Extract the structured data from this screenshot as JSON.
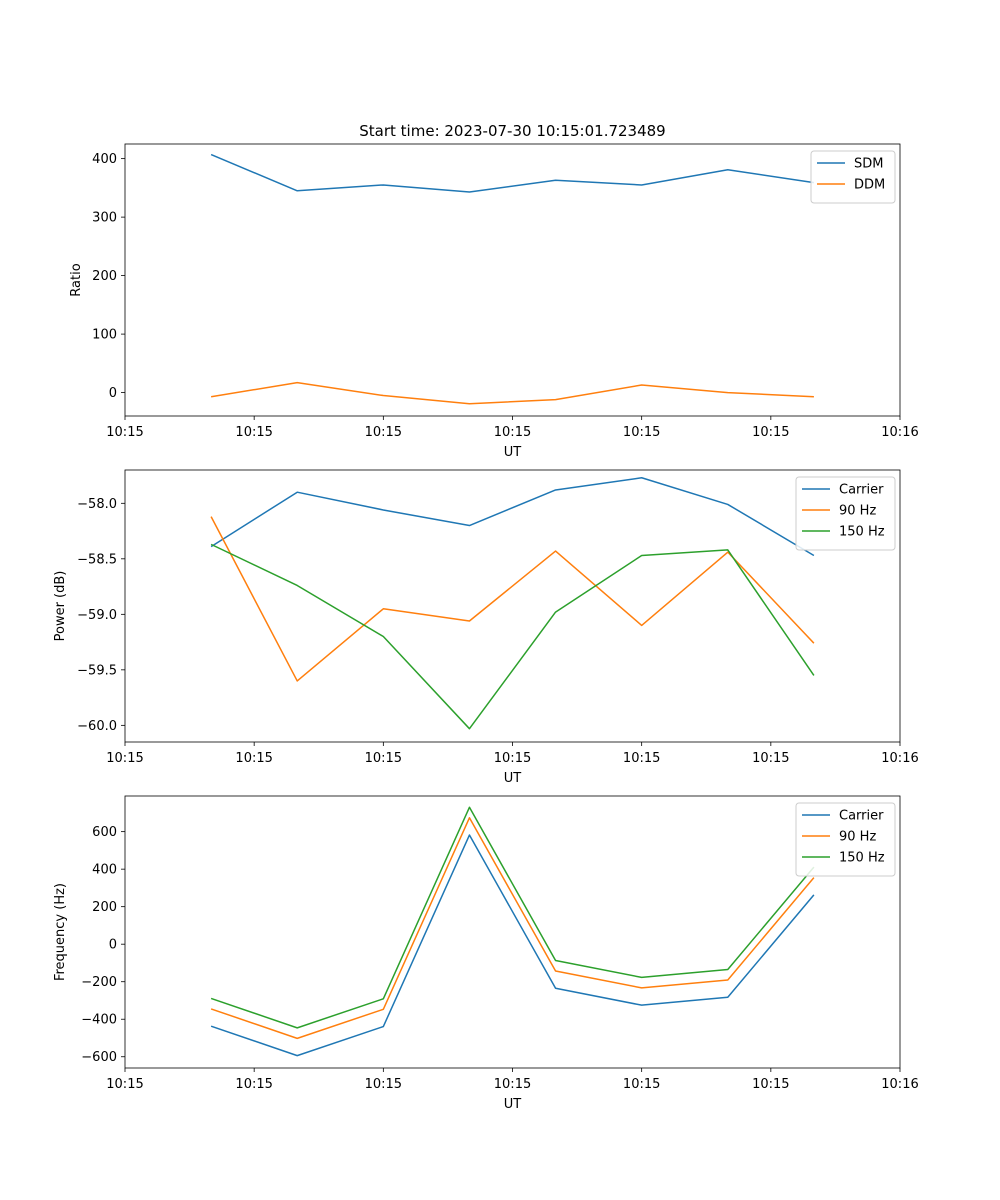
{
  "figure_title": "Start time: 2023-07-30 10:15:01.723489",
  "colors": {
    "series_1": "#1f77b4",
    "series_2": "#ff7f0e",
    "series_3": "#2ca02c",
    "axes": "#000000",
    "background": "#ffffff"
  },
  "chart_data": [
    {
      "type": "line",
      "title": "Start time: 2023-07-30 10:15:01.723489",
      "xlabel": "UT",
      "ylabel": "Ratio",
      "xlim": [
        0,
        9
      ],
      "ylim": [
        -40,
        425
      ],
      "x": [
        1,
        2,
        3,
        4,
        5,
        6,
        7,
        8
      ],
      "x_ticks": [
        0,
        1.5,
        3,
        4.5,
        6,
        7.5,
        9
      ],
      "x_tick_labels": [
        "10:15",
        "10:15",
        "10:15",
        "10:15",
        "10:15",
        "10:15",
        "10:16"
      ],
      "y_ticks": [
        0,
        100,
        200,
        300,
        400
      ],
      "y_tick_labels": [
        "0",
        "100",
        "200",
        "300",
        "400"
      ],
      "legend_position": "top-right",
      "series": [
        {
          "name": "SDM",
          "color": "#1f77b4",
          "values": [
            407,
            345,
            355,
            343,
            363,
            355,
            381,
            359
          ]
        },
        {
          "name": "DDM",
          "color": "#ff7f0e",
          "values": [
            -7,
            17,
            -5,
            -19,
            -12,
            13,
            0,
            -7
          ]
        }
      ]
    },
    {
      "type": "line",
      "title": "",
      "xlabel": "UT",
      "ylabel": "Power (dB)",
      "xlim": [
        0,
        9
      ],
      "ylim": [
        -60.15,
        -57.7
      ],
      "x": [
        1,
        2,
        3,
        4,
        5,
        6,
        7,
        8
      ],
      "x_ticks": [
        0,
        1.5,
        3,
        4.5,
        6,
        7.5,
        9
      ],
      "x_tick_labels": [
        "10:15",
        "10:15",
        "10:15",
        "10:15",
        "10:15",
        "10:15",
        "10:16"
      ],
      "y_ticks": [
        -58.0,
        -58.5,
        -59.0,
        -59.5,
        -60.0
      ],
      "y_tick_labels": [
        "−58.0",
        "−58.5",
        "−59.0",
        "−59.5",
        "−60.0"
      ],
      "legend_position": "top-right",
      "series": [
        {
          "name": "Carrier",
          "color": "#1f77b4",
          "values": [
            -58.39,
            -57.9,
            -58.06,
            -58.2,
            -57.88,
            -57.77,
            -58.01,
            -58.47
          ]
        },
        {
          "name": "90 Hz",
          "color": "#ff7f0e",
          "values": [
            -58.12,
            -59.6,
            -58.95,
            -59.06,
            -58.43,
            -59.1,
            -58.44,
            -59.26
          ]
        },
        {
          "name": "150 Hz",
          "color": "#2ca02c",
          "values": [
            -58.37,
            -58.74,
            -59.2,
            -60.03,
            -58.98,
            -58.47,
            -58.42,
            -59.55
          ]
        }
      ]
    },
    {
      "type": "line",
      "title": "",
      "xlabel": "UT",
      "ylabel": "Frequency (Hz)",
      "xlim": [
        0,
        9
      ],
      "ylim": [
        -660,
        790
      ],
      "x": [
        1,
        2,
        3,
        4,
        5,
        6,
        7,
        8
      ],
      "x_ticks": [
        0,
        1.5,
        3,
        4.5,
        6,
        7.5,
        9
      ],
      "x_tick_labels": [
        "10:15",
        "10:15",
        "10:15",
        "10:15",
        "10:15",
        "10:15",
        "10:16"
      ],
      "y_ticks": [
        600,
        400,
        200,
        0,
        -200,
        -400,
        -600
      ],
      "y_tick_labels": [
        "600",
        "400",
        "200",
        "0",
        "−200",
        "−400",
        "−600"
      ],
      "legend_position": "top-right",
      "series": [
        {
          "name": "Carrier",
          "color": "#1f77b4",
          "values": [
            -437,
            -594,
            -439,
            582,
            -235,
            -325,
            -283,
            263
          ]
        },
        {
          "name": "90 Hz",
          "color": "#ff7f0e",
          "values": [
            -345,
            -502,
            -347,
            674,
            -143,
            -233,
            -191,
            355
          ]
        },
        {
          "name": "150 Hz",
          "color": "#2ca02c",
          "values": [
            -289,
            -446,
            -291,
            730,
            -87,
            -177,
            -135,
            411
          ]
        }
      ]
    }
  ]
}
